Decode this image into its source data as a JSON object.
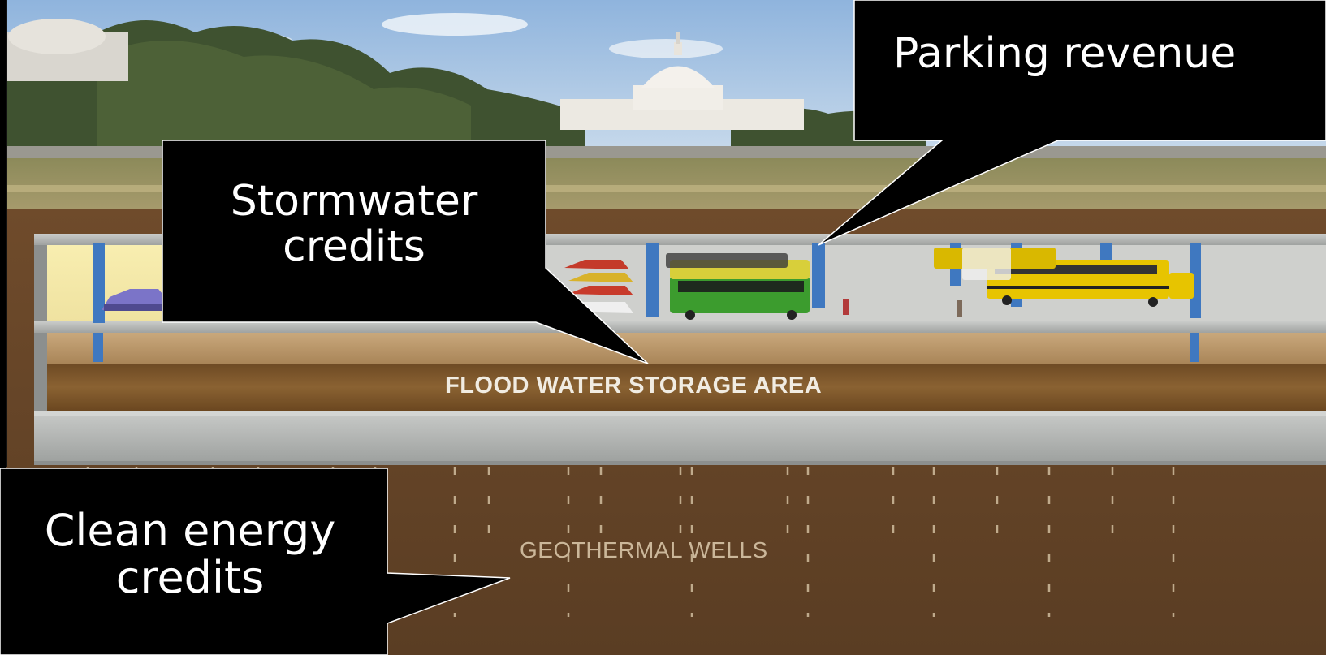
{
  "callouts": {
    "parking": "Parking revenue",
    "stormwater": "Stormwater\ncredits",
    "clean_energy": "Clean energy\ncredits"
  },
  "diagram": {
    "flood_storage_label": "FLOOD WATER STORAGE AREA",
    "geothermal_label": "GEOTHERMAL WELLS"
  },
  "colors": {
    "sky": "#a9c6e2",
    "soil": "#6b4a2c",
    "concrete": "#b7b9b6",
    "column_blue": "#3f78c0",
    "bus_yellow": "#e7c400",
    "bus_green": "#3c9c2e",
    "callout_bg": "#000000",
    "callout_text": "#ffffff"
  }
}
